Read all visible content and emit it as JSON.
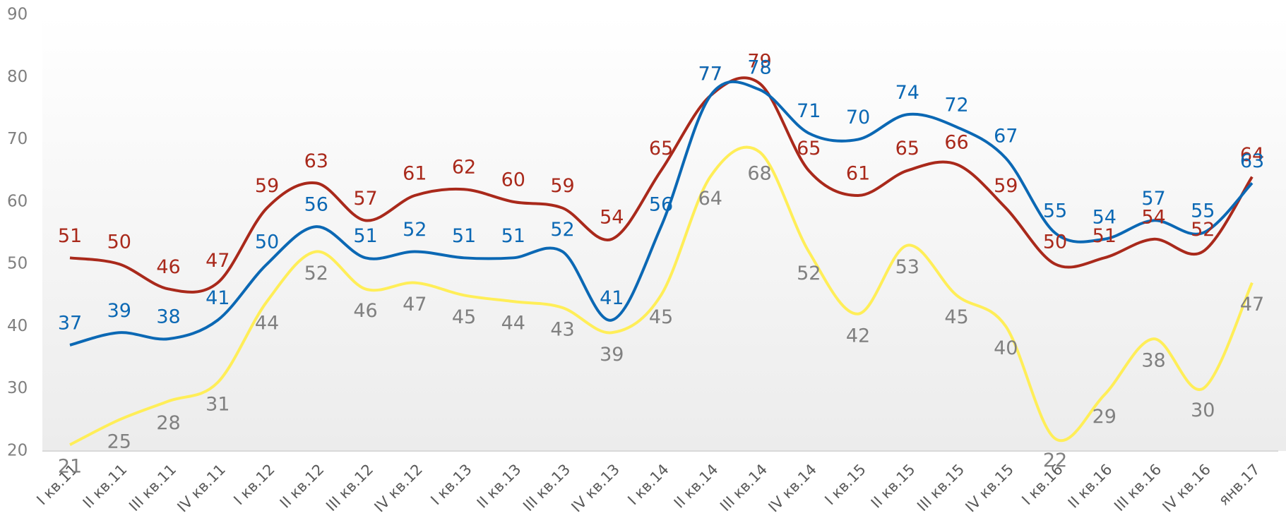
{
  "chart_data": {
    "type": "line",
    "categories": [
      "I кв.11",
      "II кв.11",
      "III кв.11",
      "IV кв.11",
      "I кв.12",
      "II кв.12",
      "III кв.12",
      "IV кв.12",
      "I кв.13",
      "II кв.13",
      "III кв.13",
      "IV кв.13",
      "I кв.14",
      "II кв.14",
      "III кв.14",
      "IV кв.14",
      "I кв.15",
      "II кв.15",
      "III кв.15",
      "IV кв.15",
      "I кв.16",
      "II кв.16",
      "III кв.16",
      "IV кв.16",
      "янв.17"
    ],
    "series": [
      {
        "color": "#ffee58",
        "label_color": "#808080",
        "values": [
          21,
          25,
          28,
          31,
          44,
          52,
          46,
          47,
          45,
          44,
          43,
          39,
          45,
          64,
          68,
          52,
          42,
          53,
          45,
          40,
          22,
          29,
          38,
          30,
          47
        ]
      },
      {
        "color": "#a9291b",
        "label_color": "#a9291b",
        "values": [
          51,
          50,
          46,
          47,
          59,
          63,
          57,
          61,
          62,
          60,
          59,
          54,
          65,
          77,
          79,
          65,
          61,
          65,
          66,
          59,
          50,
          51,
          54,
          52,
          64
        ]
      },
      {
        "color": "#0b68b4",
        "label_color": "#0b68b4",
        "values": [
          37,
          39,
          38,
          41,
          50,
          56,
          51,
          52,
          51,
          51,
          52,
          41,
          56,
          77,
          78,
          71,
          70,
          74,
          72,
          67,
          55,
          54,
          57,
          55,
          63
        ]
      }
    ],
    "ylim": [
      20,
      90
    ],
    "yticks": [
      20,
      30,
      40,
      50,
      60,
      70,
      80,
      90
    ],
    "grid": false
  }
}
